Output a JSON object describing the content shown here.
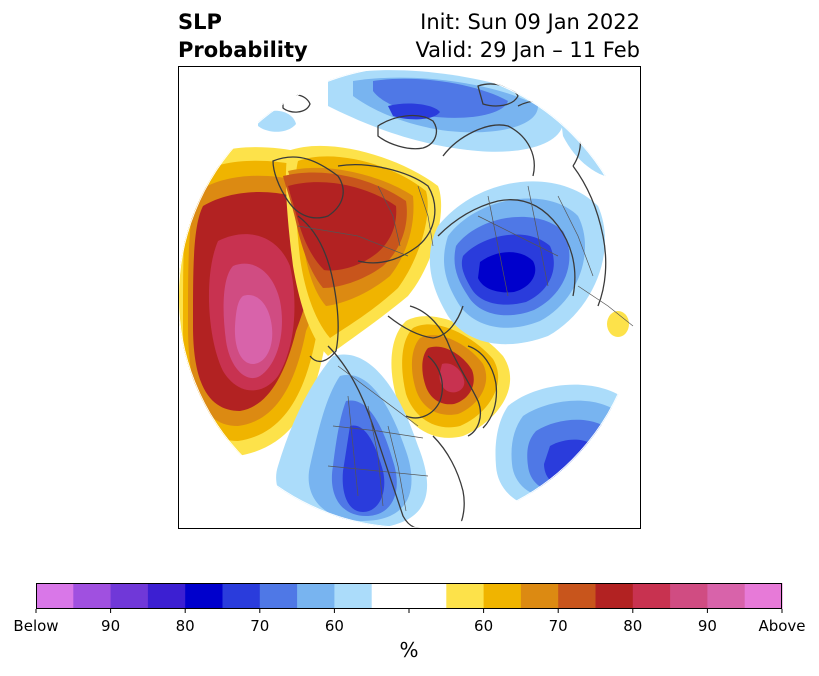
{
  "title": {
    "variable": "SLP",
    "subtitle": "Probability",
    "init": "Init: Sun 09 Jan 2022",
    "valid": "Valid: 29 Jan – 11 Feb"
  },
  "map": {
    "projection": "north-polar-stereographic",
    "features": [
      "coastlines",
      "country-borders",
      "state-borders"
    ],
    "anomalies": [
      {
        "region": "North Pacific",
        "category": "above",
        "peak_percent": 90
      },
      {
        "region": "Alaska / Western Canada",
        "category": "above",
        "peak_percent": 80
      },
      {
        "region": "Hudson Bay / Eastern Canada",
        "category": "above",
        "peak_percent": 80
      },
      {
        "region": "Central Siberia",
        "category": "below",
        "peak_percent": 80
      },
      {
        "region": "Western United States",
        "category": "below",
        "peak_percent": 70
      },
      {
        "region": "North Atlantic",
        "category": "below",
        "peak_percent": 70
      }
    ]
  },
  "colorbar": {
    "unit_label": "%",
    "colors": [
      "#d977e8",
      "#a050e0",
      "#7038d8",
      "#3c1fd2",
      "#0000cc",
      "#2a3cdc",
      "#4f78e6",
      "#78b4f0",
      "#abdcfa",
      "#ffffff",
      "#ffffff",
      "#fde24a",
      "#f0b400",
      "#dc8a12",
      "#c8551c",
      "#b22222",
      "#c83250",
      "#d04c82",
      "#d863aa",
      "#e77ad8"
    ],
    "tick_labels": [
      "Below",
      "90",
      "80",
      "70",
      "60",
      "60",
      "70",
      "80",
      "90",
      "Above"
    ]
  }
}
